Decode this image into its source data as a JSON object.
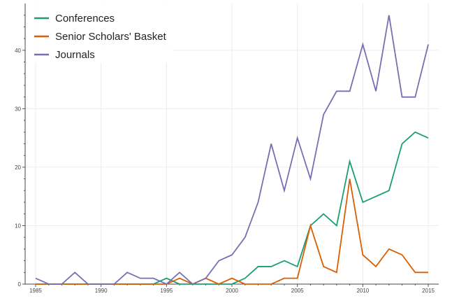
{
  "chart_data": {
    "type": "line",
    "title": "",
    "xlabel": "",
    "ylabel": "",
    "xlim": [
      1984.2,
      2015.8
    ],
    "ylim": [
      0,
      48
    ],
    "grid": true,
    "legend_position": "top-left",
    "x_ticks": [
      "1985",
      "1990",
      "1995",
      "2000",
      "2005",
      "2010",
      "2015"
    ],
    "y_ticks": [
      "0",
      "10",
      "20",
      "30",
      "40"
    ],
    "x": [
      1985,
      1986,
      1987,
      1988,
      1989,
      1990,
      1991,
      1992,
      1993,
      1994,
      1995,
      1996,
      1997,
      1998,
      1999,
      2000,
      2001,
      2002,
      2003,
      2004,
      2005,
      2006,
      2007,
      2008,
      2009,
      2010,
      2011,
      2012,
      2013,
      2014,
      2015
    ],
    "series": [
      {
        "name": "Conferences",
        "color": "#1b9e77",
        "values": [
          0,
          0,
          0,
          0,
          0,
          0,
          0,
          0,
          0,
          0,
          1,
          0,
          0,
          0,
          0,
          0,
          1,
          3,
          3,
          4,
          3,
          10,
          12,
          10,
          21,
          14,
          15,
          16,
          24,
          26,
          25
        ]
      },
      {
        "name": "Senior Scholars' Basket",
        "color": "#d95f02",
        "values": [
          0,
          0,
          0,
          0,
          0,
          0,
          0,
          0,
          0,
          0,
          0,
          1,
          0,
          1,
          0,
          1,
          0,
          0,
          0,
          1,
          1,
          10,
          3,
          2,
          18,
          5,
          3,
          6,
          5,
          2,
          2
        ]
      },
      {
        "name": "Journals",
        "color": "#7570b3",
        "values": [
          1,
          0,
          0,
          2,
          0,
          0,
          0,
          2,
          1,
          1,
          0,
          2,
          0,
          1,
          4,
          5,
          8,
          14,
          24,
          16,
          25,
          18,
          29,
          33,
          33,
          41,
          33,
          46,
          32,
          32,
          41
        ]
      }
    ]
  }
}
